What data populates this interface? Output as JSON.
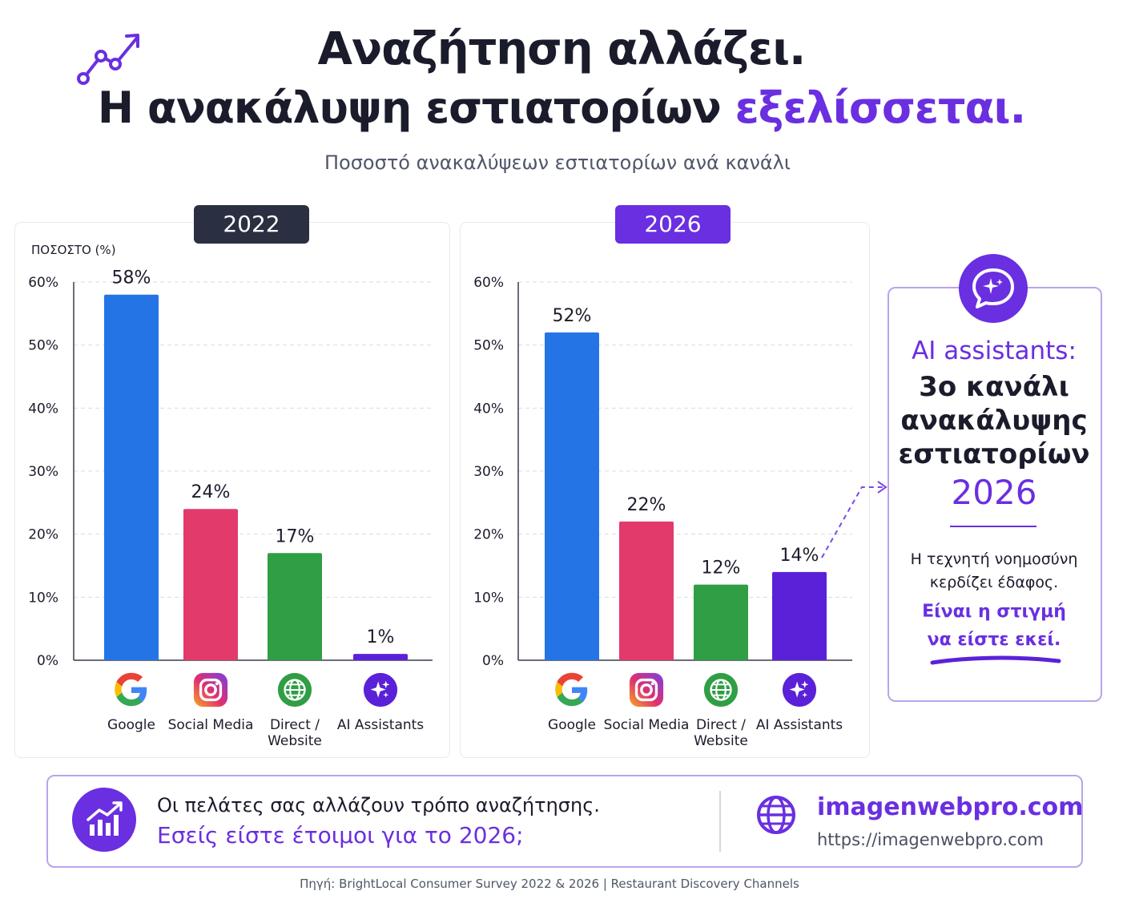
{
  "header": {
    "title_line1": "Αναζήτηση αλλάζει.",
    "title_line2_main": "Η ανακάλυψη εστιατορίων ",
    "title_line2_accent": "εξελίσσεται.",
    "subtitle": "Ποσοστό ανακαλύψεων εστιατορίων ανά κανάλι"
  },
  "colors": {
    "google": "#2474e6",
    "social": "#e23a6b",
    "direct": "#2f9e44",
    "ai": "#5b21d8",
    "accent": "#6a2fe0",
    "dark": "#2b2f42"
  },
  "chart_data": [
    {
      "type": "bar",
      "title": "2022",
      "ylabel": "ΠΟΣΟΣΤΟ (%)",
      "categories": [
        "Google",
        "Social Media",
        "Direct / Website",
        "AI Assistants"
      ],
      "values": [
        58,
        24,
        17,
        1
      ],
      "data_labels": [
        "58%",
        "24%",
        "17%",
        "1%"
      ],
      "ylim": [
        0,
        60
      ],
      "yticks": [
        "0%",
        "10%",
        "20%",
        "30%",
        "40%",
        "50%",
        "60%"
      ],
      "grid": true
    },
    {
      "type": "bar",
      "title": "2026",
      "categories": [
        "Google",
        "Social Media",
        "Direct / Website",
        "AI Assistants"
      ],
      "values": [
        52,
        22,
        12,
        14
      ],
      "data_labels": [
        "52%",
        "22%",
        "12%",
        "14%"
      ],
      "ylim": [
        0,
        60
      ],
      "yticks": [
        "0%",
        "10%",
        "20%",
        "30%",
        "40%",
        "50%",
        "60%"
      ],
      "grid": true
    }
  ],
  "categories": [
    {
      "line1": "Google",
      "line2": "",
      "icon": "google-icon"
    },
    {
      "line1": "Social Media",
      "line2": "",
      "icon": "instagram-icon"
    },
    {
      "line1": "Direct /",
      "line2": "Website",
      "icon": "globe-icon"
    },
    {
      "line1": "AI Assistants",
      "line2": "",
      "icon": "ai-sparkle-icon"
    }
  ],
  "callout": {
    "heading": "AI assistants:",
    "line1": "3ο κανάλι",
    "line2": "ανακάλυψης",
    "line3": "εστιατορίων",
    "year": "2026",
    "body1": "Η τεχνητή νοημοσύνη",
    "body2": "κερδίζει έδαφος.",
    "cta1": "Είναι η στιγμή",
    "cta2": "να είστε εκεί."
  },
  "bottom": {
    "line1": "Οι πελάτες σας αλλάζουν τρόπο αναζήτησης.",
    "line2": "Εσείς είστε έτοιμοι για το 2026;",
    "brand": "imagenwebpro.com",
    "url": "https://imagenwebpro.com"
  },
  "source": "Πηγή: BrightLocal Consumer Survey 2022 & 2026 | Restaurant Discovery Channels"
}
